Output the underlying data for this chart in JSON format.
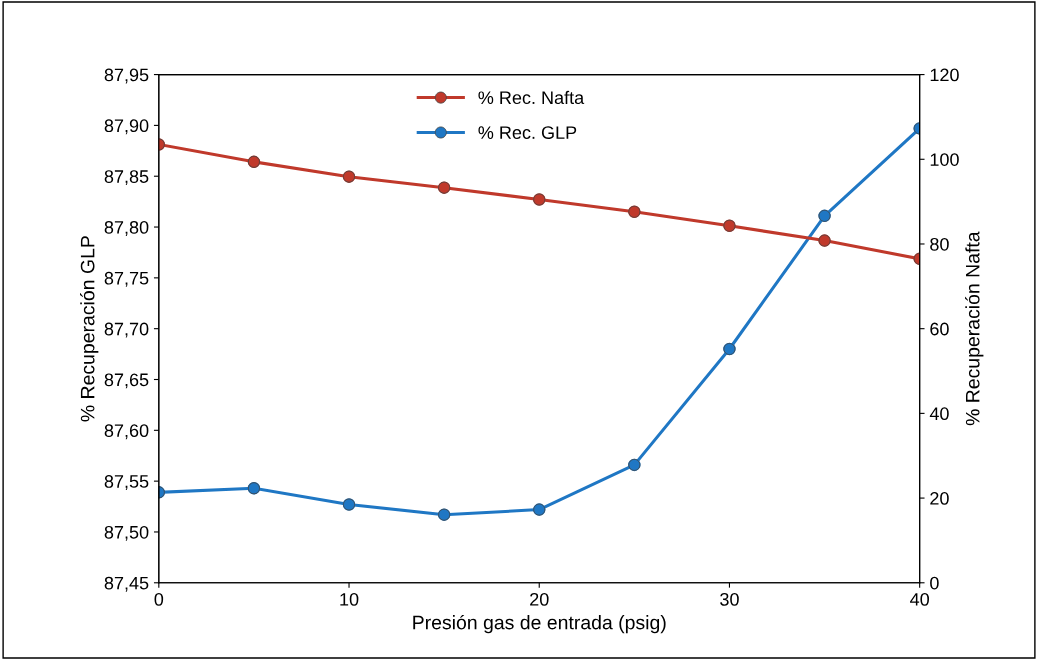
{
  "chart_data": {
    "type": "line",
    "xlabel": "Presión gas de entrada (psig)",
    "ylabel": "% Recuperación GLP",
    "y2label": "% Recuperación Nafta",
    "x": [
      0,
      5,
      10,
      15,
      20,
      25,
      30,
      35,
      40
    ],
    "series": [
      {
        "name": "% Rec. Nafta",
        "color": "#c0392b",
        "axis": "y2",
        "values": [
          103.5,
          99.4,
          95.9,
          93.3,
          90.5,
          87.6,
          84.3,
          80.8,
          76.5
        ]
      },
      {
        "name": "% Rec. GLP",
        "color": "#1f77c4",
        "values": [
          87.539,
          87.543,
          87.527,
          87.517,
          87.522,
          87.566,
          87.68,
          87.811,
          87.897
        ]
      }
    ],
    "xlim": [
      0,
      40
    ],
    "xticks": [
      0,
      10,
      20,
      30,
      40
    ],
    "ylim": [
      87.45,
      87.95
    ],
    "yticks": [
      {
        "value": 87.45,
        "label": "87,45"
      },
      {
        "value": 87.5,
        "label": "87,50"
      },
      {
        "value": 87.55,
        "label": "87,55"
      },
      {
        "value": 87.6,
        "label": "87,60"
      },
      {
        "value": 87.65,
        "label": "87,65"
      },
      {
        "value": 87.7,
        "label": "87,70"
      },
      {
        "value": 87.75,
        "label": "87,75"
      },
      {
        "value": 87.8,
        "label": "87,80"
      },
      {
        "value": 87.85,
        "label": "87,85"
      },
      {
        "value": 87.9,
        "label": "87,90"
      },
      {
        "value": 87.95,
        "label": "87,95"
      }
    ],
    "y2lim": [
      0,
      120
    ],
    "y2ticks": [
      0,
      20,
      40,
      60,
      80,
      100,
      120
    ],
    "marker": "circle",
    "line_style": "solid",
    "grid": false,
    "legend": "top"
  }
}
